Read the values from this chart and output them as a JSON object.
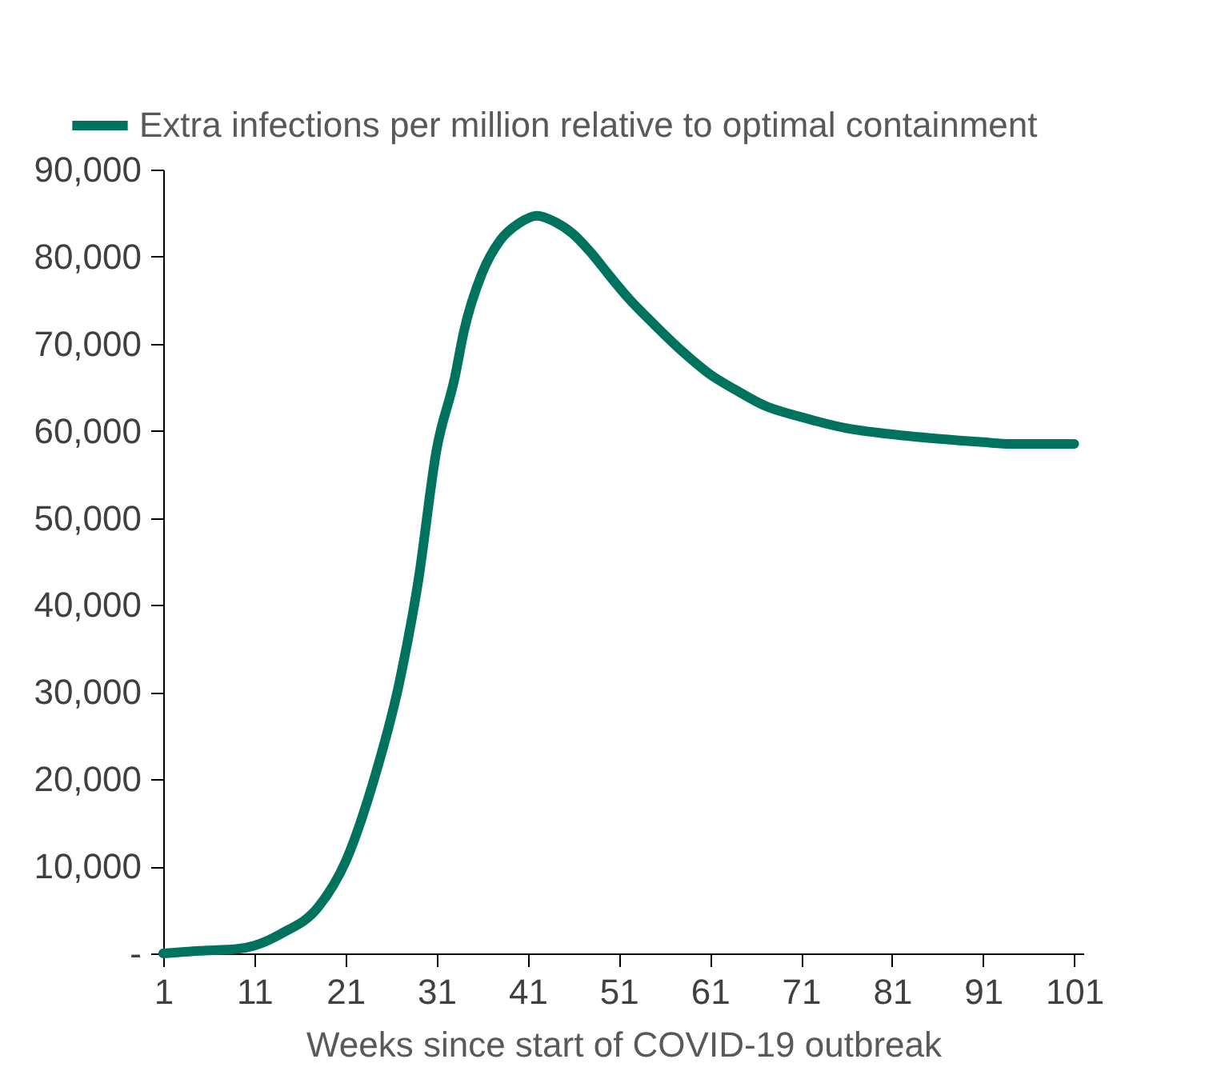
{
  "chart_data": {
    "type": "line",
    "xlabel": "Weeks since start of COVID-19 outbreak",
    "x": [
      1,
      5,
      9,
      11,
      14,
      18,
      21,
      24,
      27,
      29,
      31,
      33,
      34,
      36,
      38,
      40,
      42,
      44,
      46,
      48,
      50,
      52,
      55,
      58,
      61,
      64,
      67,
      71,
      76,
      81,
      86,
      91,
      94,
      101
    ],
    "series": [
      {
        "name": "Extra infections per million relative to optimal containment",
        "color": "#00735f",
        "values": [
          0,
          300,
          500,
          900,
          2300,
          5300,
          10500,
          19500,
          31500,
          42800,
          57800,
          66100,
          71400,
          78100,
          81900,
          83800,
          84700,
          84000,
          82600,
          80400,
          77800,
          75300,
          72100,
          69100,
          66500,
          64600,
          62900,
          61600,
          60300,
          59600,
          59100,
          58700,
          58500,
          58500
        ]
      }
    ],
    "xlim": [
      1,
      102
    ],
    "xticks": [
      1,
      11,
      21,
      31,
      41,
      51,
      61,
      71,
      81,
      91,
      101
    ],
    "ylim": [
      0,
      90000
    ],
    "yticks": [
      {
        "value": 0,
        "label": "-"
      },
      {
        "value": 10000,
        "label": "10,000"
      },
      {
        "value": 20000,
        "label": "20,000"
      },
      {
        "value": 30000,
        "label": "30,000"
      },
      {
        "value": 40000,
        "label": "40,000"
      },
      {
        "value": 50000,
        "label": "50,000"
      },
      {
        "value": 60000,
        "label": "60,000"
      },
      {
        "value": 70000,
        "label": "70,000"
      },
      {
        "value": 80000,
        "label": "80,000"
      },
      {
        "value": 90000,
        "label": "90,000"
      }
    ],
    "legend": "top left",
    "grid": false,
    "line_style": "solid",
    "marker": "none"
  }
}
